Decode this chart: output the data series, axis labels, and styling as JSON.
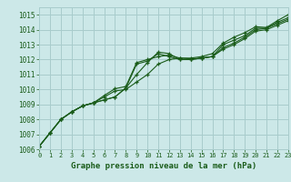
{
  "xlabel": "Graphe pression niveau de la mer (hPa)",
  "background_color": "#cce8e8",
  "grid_color": "#a8cccc",
  "line_color": "#1a5c1a",
  "xlim": [
    0,
    23
  ],
  "ylim": [
    1006,
    1015.5
  ],
  "yticks": [
    1006,
    1007,
    1008,
    1009,
    1010,
    1011,
    1012,
    1013,
    1014,
    1015
  ],
  "xticks": [
    0,
    1,
    2,
    3,
    4,
    5,
    6,
    7,
    8,
    9,
    10,
    11,
    12,
    13,
    14,
    15,
    16,
    17,
    18,
    19,
    20,
    21,
    22,
    23
  ],
  "series": [
    [
      1006.2,
      1007.1,
      1008.0,
      1008.5,
      1008.9,
      1009.1,
      1009.3,
      1009.5,
      1010.1,
      1011.7,
      1011.9,
      1012.4,
      1012.2,
      1012.0,
      1012.0,
      1012.1,
      1012.2,
      1013.0,
      1013.3,
      1013.6,
      1014.1,
      1014.1,
      1014.5,
      1014.8
    ],
    [
      1006.2,
      1007.1,
      1008.0,
      1008.5,
      1008.9,
      1009.1,
      1009.3,
      1009.5,
      1010.1,
      1011.0,
      1011.8,
      1012.5,
      1012.4,
      1012.0,
      1012.0,
      1012.1,
      1012.2,
      1012.8,
      1013.1,
      1013.5,
      1014.0,
      1014.1,
      1014.4,
      1014.7
    ],
    [
      1006.2,
      1007.1,
      1008.0,
      1008.5,
      1008.9,
      1009.1,
      1009.6,
      1010.05,
      1010.2,
      1011.8,
      1012.0,
      1012.2,
      1012.3,
      1012.1,
      1012.1,
      1012.2,
      1012.4,
      1013.1,
      1013.5,
      1013.8,
      1014.2,
      1014.15,
      1014.6,
      1015.0
    ],
    [
      1006.2,
      1007.1,
      1008.0,
      1008.5,
      1008.9,
      1009.1,
      1009.5,
      1009.9,
      1010.0,
      1010.5,
      1011.0,
      1011.7,
      1012.0,
      1012.1,
      1012.05,
      1012.1,
      1012.2,
      1012.7,
      1013.0,
      1013.4,
      1013.9,
      1014.0,
      1014.3,
      1014.6
    ]
  ]
}
